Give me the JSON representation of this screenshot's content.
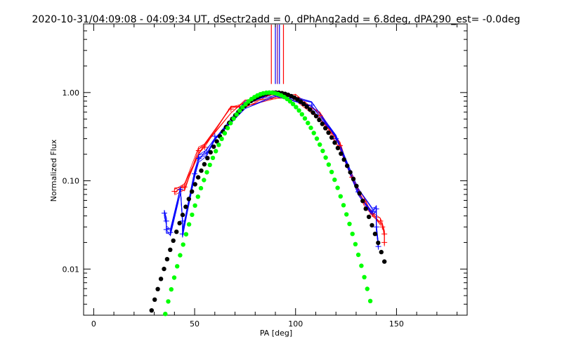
{
  "chart_data": {
    "type": "line",
    "title": "2020-10-31/04:09:08 - 04:09:34 UT, dSectr2add = 0, dPhAng2add = 6.8deg, dPA290_est= -0.0deg",
    "xlabel": "PA [deg]",
    "ylabel": "Normalized Flux",
    "xlim": [
      -5,
      185
    ],
    "ylim": [
      0.003,
      6.0
    ],
    "yscale": "log",
    "grid": false,
    "x_ticks": [
      "0",
      "50",
      "100",
      "150"
    ],
    "y_ticks": [
      "0.01",
      "0.10",
      "1.00"
    ],
    "colors": {
      "red": "#ff0000",
      "blue": "#0000ff",
      "green": "#00ff00",
      "black": "#000000"
    },
    "red_points": [
      [
        40,
        0.076
      ],
      [
        45,
        0.085
      ],
      [
        52,
        0.22
      ],
      [
        55,
        0.24
      ],
      [
        68,
        0.65
      ],
      [
        75,
        0.75
      ],
      [
        90,
        0.94
      ],
      [
        100,
        0.88
      ],
      [
        112,
        0.55
      ],
      [
        122,
        0.25
      ],
      [
        128,
        0.11
      ],
      [
        134,
        0.058
      ],
      [
        138,
        0.042
      ],
      [
        142,
        0.035
      ],
      [
        143,
        0.03
      ],
      [
        144,
        0.025
      ],
      [
        144,
        0.02
      ]
    ],
    "blue_points": [
      [
        35,
        0.043
      ],
      [
        36,
        0.035
      ],
      [
        36,
        0.028
      ],
      [
        38,
        0.026
      ],
      [
        43,
        0.08
      ],
      [
        44,
        0.035
      ],
      [
        44,
        0.025
      ],
      [
        50,
        0.12
      ],
      [
        52,
        0.18
      ],
      [
        56,
        0.21
      ],
      [
        60,
        0.32
      ],
      [
        75,
        0.73
      ],
      [
        90,
        0.97
      ],
      [
        108,
        0.72
      ],
      [
        120,
        0.3
      ],
      [
        131,
        0.075
      ],
      [
        138,
        0.045
      ],
      [
        140,
        0.048
      ],
      [
        140,
        0.03
      ],
      [
        141,
        0.018
      ]
    ],
    "vertical_lines_red": [
      88,
      94
    ],
    "vertical_lines_blue": [
      90,
      92
    ],
    "vertical_line_purple": 91
  }
}
